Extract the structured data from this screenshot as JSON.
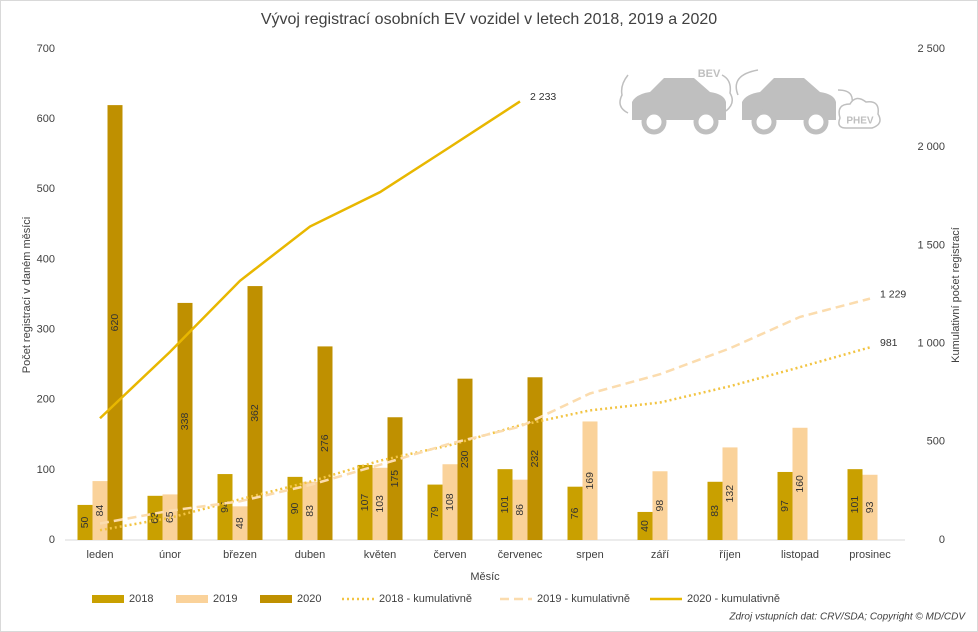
{
  "chart_data": {
    "type": "bar",
    "title": "Vývoj registrací osobních EV vozidel v letech 2018, 2019 a 2020",
    "x_label": "Měsíc",
    "y_label": "Počet registrací v daném měsíci",
    "y2_label": "Kumulativní počet registrací",
    "source": "Zdroj vstupních dat: CRV/SDA; Copyright © MD/CDV",
    "icon_labels": [
      "BEV",
      "PHEV"
    ],
    "categories": [
      "leden",
      "únor",
      "březen",
      "duben",
      "květen",
      "červen",
      "červenec",
      "srpen",
      "září",
      "říjen",
      "listopad",
      "prosinec"
    ],
    "ylim": [
      0,
      700
    ],
    "yticks": [
      0,
      100,
      200,
      300,
      400,
      500,
      600,
      700
    ],
    "y2lim": [
      0,
      2500
    ],
    "y2ticks": [
      0,
      500,
      {
        "value": 1000,
        "label": "1 000"
      },
      {
        "value": 1500,
        "label": "1 500"
      },
      {
        "value": 2000,
        "label": "2 000"
      },
      {
        "value": 2500,
        "label": "2 500"
      }
    ],
    "series": [
      {
        "name": "2018",
        "type": "bar",
        "color": "#c9a000",
        "values": [
          50,
          63,
          94,
          90,
          107,
          79,
          101,
          76,
          40,
          83,
          97,
          101
        ]
      },
      {
        "name": "2019",
        "type": "bar",
        "color": "#fad29a",
        "values": [
          84,
          65,
          48,
          83,
          103,
          108,
          86,
          169,
          98,
          132,
          160,
          93
        ]
      },
      {
        "name": "2020",
        "type": "bar",
        "color": "#bf9000",
        "values": [
          620,
          338,
          362,
          276,
          175,
          230,
          232,
          null,
          null,
          null,
          null,
          null
        ]
      },
      {
        "name": "2018 - kumulativně",
        "type": "line",
        "axis": "y2",
        "dash": "dotted",
        "color": "#f2c443",
        "values": [
          50,
          113,
          207,
          297,
          404,
          483,
          584,
          660,
          700,
          783,
          880,
          981
        ],
        "value_labels": [
          null,
          null,
          null,
          null,
          null,
          null,
          null,
          null,
          null,
          null,
          null,
          "981"
        ]
      },
      {
        "name": "2019 - kumulativně",
        "type": "line",
        "axis": "y2",
        "dash": "dashed",
        "color": "#fbdcae",
        "values": [
          84,
          149,
          197,
          280,
          383,
          491,
          577,
          746,
          844,
          976,
          1136,
          1229
        ],
        "value_labels": [
          null,
          null,
          null,
          null,
          null,
          null,
          null,
          null,
          null,
          null,
          null,
          "1 229"
        ]
      },
      {
        "name": "2020 - kumulativně",
        "type": "line",
        "axis": "y2",
        "dash": "solid",
        "color": "#e8b700",
        "values": [
          620,
          958,
          1320,
          1596,
          1771,
          2001,
          2233,
          null,
          null,
          null,
          null,
          null
        ],
        "value_labels": [
          null,
          null,
          null,
          null,
          null,
          null,
          "2 233",
          null,
          null,
          null,
          null,
          null
        ]
      }
    ]
  }
}
